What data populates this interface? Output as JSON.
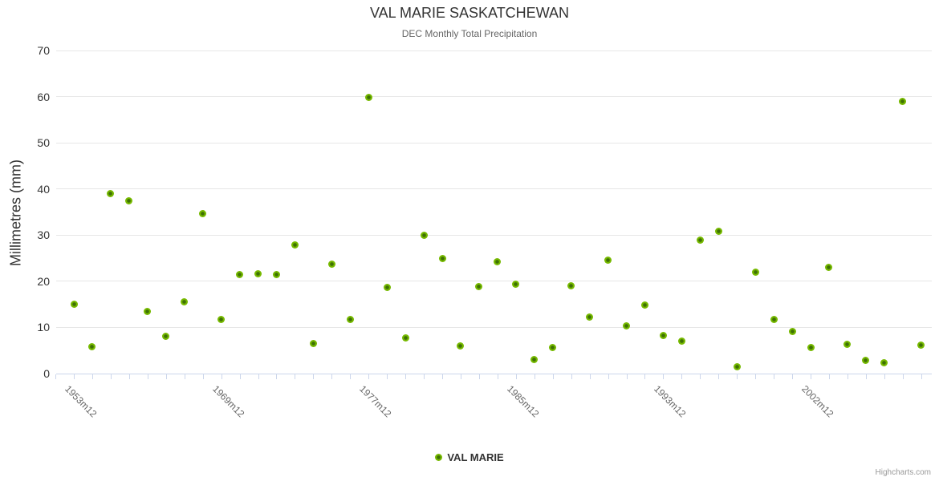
{
  "header": {
    "title": "VAL MARIE SASKATCHEWAN",
    "subtitle": "DEC Monthly Total Precipitation"
  },
  "legend": {
    "label": "VAL MARIE"
  },
  "credits": {
    "label": "Highcharts.com"
  },
  "colors": {
    "marker_outer": "#76b900",
    "marker_core": "#3e7104",
    "grid": "#e6e6e6",
    "axis": "#ccd6eb",
    "title": "#333333",
    "subtitle": "#666666",
    "x_label": "#666666",
    "y_label": "#333333",
    "credits": "#999999"
  },
  "chart_data": {
    "type": "scatter",
    "title": "VAL MARIE SASKATCHEWAN",
    "subtitle": "DEC Monthly Total Precipitation",
    "xlabel": "",
    "ylabel": "Millimetres (mm)",
    "ylim": [
      0,
      70
    ],
    "y_ticks": [
      0,
      10,
      20,
      30,
      40,
      50,
      60,
      70
    ],
    "grid": "horizontal-only",
    "legend_position": "bottom-center",
    "n_points": 47,
    "x_tick_labels": [
      {
        "index": 0,
        "label": "1953m12"
      },
      {
        "index": 8,
        "label": "1969m12"
      },
      {
        "index": 16,
        "label": "1977m12"
      },
      {
        "index": 24,
        "label": "1985m12"
      },
      {
        "index": 32,
        "label": "1993m12"
      },
      {
        "index": 40,
        "label": "2002m12"
      }
    ],
    "series": [
      {
        "name": "VAL MARIE",
        "color": "#76b900",
        "values": [
          15.1,
          5.8,
          39.0,
          37.4,
          13.4,
          8.1,
          15.5,
          34.6,
          11.8,
          21.5,
          21.7,
          21.4,
          27.9,
          6.6,
          23.7,
          11.7,
          59.9,
          18.6,
          7.8,
          30.0,
          25.0,
          6.0,
          18.8,
          24.2,
          19.3,
          3.0,
          5.7,
          19.1,
          12.3,
          24.6,
          10.4,
          14.8,
          8.3,
          7.1,
          29.0,
          30.8,
          1.4,
          21.9,
          11.7,
          9.2,
          5.6,
          23.1,
          6.3,
          2.9,
          2.3,
          58.9,
          6.2
        ]
      }
    ]
  }
}
